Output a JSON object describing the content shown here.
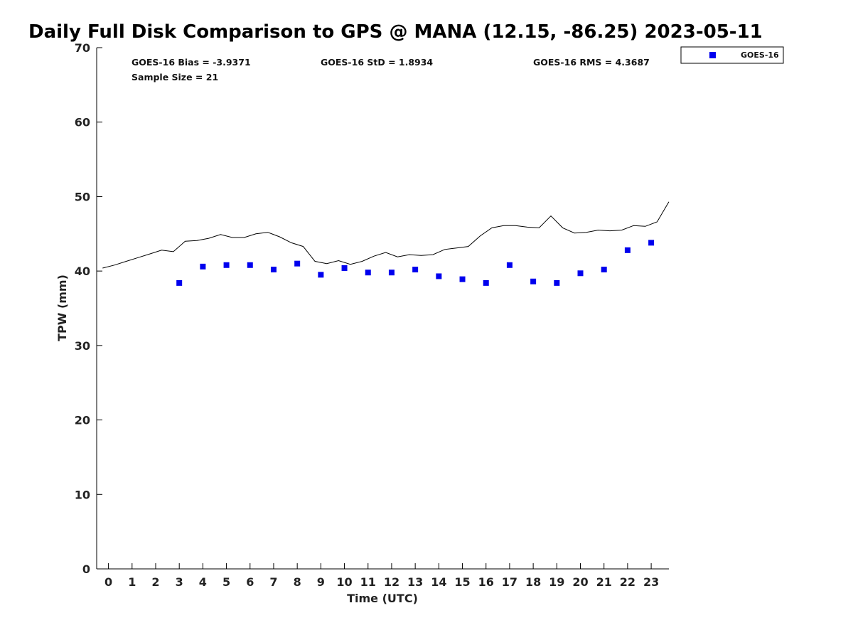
{
  "chart_data": {
    "type": "scatter",
    "title": "Daily Full Disk Comparison to GPS @ MANA (12.15, -86.25) 2023-05-11",
    "xlabel": "Time (UTC)",
    "ylabel": "TPW (mm)",
    "xlim": [
      -0.5,
      23.75
    ],
    "ylim": [
      0,
      70
    ],
    "x_ticks": [
      "0",
      "1",
      "2",
      "3",
      "4",
      "5",
      "6",
      "7",
      "8",
      "9",
      "10",
      "11",
      "12",
      "13",
      "14",
      "15",
      "16",
      "17",
      "18",
      "19",
      "20",
      "21",
      "22",
      "23"
    ],
    "y_ticks": [
      "0",
      "10",
      "20",
      "30",
      "40",
      "50",
      "60",
      "70"
    ],
    "grid": false,
    "legend_position": "top-right, outside plot",
    "stats": {
      "bias": "GOES-16 Bias = -3.9371",
      "std": "GOES-16 StD = 1.8934",
      "rms": "GOES-16 RMS = 4.3687",
      "sample": "Sample Size = 21"
    },
    "series": [
      {
        "name": "GOES-16",
        "kind": "markers",
        "marker": "square",
        "color": "#0000ee",
        "x": [
          3.0,
          4.0,
          5.0,
          6.0,
          7.0,
          8.0,
          9.0,
          10.0,
          11.0,
          12.0,
          13.0,
          14.0,
          15.0,
          16.0,
          17.0,
          18.0,
          19.0,
          20.0,
          21.0,
          22.0,
          23.0
        ],
        "y": [
          38.4,
          40.6,
          40.8,
          40.8,
          40.2,
          41.0,
          39.5,
          40.4,
          39.8,
          39.8,
          40.2,
          39.3,
          38.9,
          38.4,
          40.8,
          38.6,
          38.4,
          39.7,
          40.2,
          42.8,
          43.8
        ]
      },
      {
        "kind": "line",
        "color": "#000000",
        "x": [
          -0.25,
          0.25,
          0.75,
          1.25,
          1.75,
          2.25,
          2.75,
          3.25,
          3.75,
          4.25,
          4.75,
          5.25,
          5.75,
          6.25,
          6.75,
          7.25,
          7.75,
          8.25,
          8.75,
          9.25,
          9.75,
          10.25,
          10.75,
          11.25,
          11.75,
          12.25,
          12.75,
          13.25,
          13.75,
          14.25,
          14.75,
          15.25,
          15.75,
          16.25,
          16.75,
          17.25,
          17.75,
          18.25,
          18.75,
          19.25,
          19.75,
          20.25,
          20.75,
          21.25,
          21.75,
          22.25,
          22.75,
          23.25,
          23.75
        ],
        "y": [
          40.4,
          40.8,
          41.3,
          41.8,
          42.3,
          42.8,
          42.6,
          44.0,
          44.1,
          44.4,
          44.9,
          44.5,
          44.5,
          45.0,
          45.2,
          44.6,
          43.8,
          43.3,
          41.3,
          41.0,
          41.4,
          40.9,
          41.3,
          42.0,
          42.5,
          41.9,
          42.2,
          42.1,
          42.2,
          42.9,
          43.1,
          43.3,
          44.7,
          45.8,
          46.1,
          46.1,
          45.9,
          45.8,
          47.4,
          45.8,
          45.1,
          45.2,
          45.5,
          45.4,
          45.5,
          46.1,
          46.0,
          46.6,
          49.3
        ]
      }
    ]
  }
}
